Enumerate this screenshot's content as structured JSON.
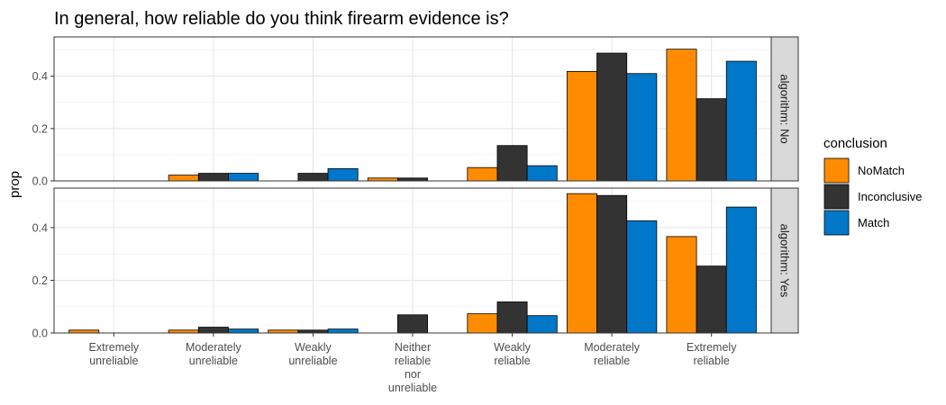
{
  "chart_data": {
    "type": "bar",
    "title": "In general, how reliable do you think firearm evidence is?",
    "ylabel": "prop",
    "xlabel": "",
    "ylim": [
      0,
      0.55
    ],
    "y_ticks": [
      "0.0",
      "0.2",
      "0.4"
    ],
    "grid": true,
    "legend_position": "right",
    "legend_title": "conclusion",
    "categories": [
      "Extremely unreliable",
      "Moderately unreliable",
      "Weakly unreliable",
      "Neither reliable nor unreliable",
      "Weakly reliable",
      "Moderately reliable",
      "Extremely reliable"
    ],
    "category_lines": [
      [
        "Extremely",
        "unreliable"
      ],
      [
        "Moderately",
        "unreliable"
      ],
      [
        "Weakly",
        "unreliable"
      ],
      [
        "Neither",
        "reliable",
        "nor",
        "unreliable"
      ],
      [
        "Weakly",
        "reliable"
      ],
      [
        "Moderately",
        "reliable"
      ],
      [
        "Extremely",
        "reliable"
      ]
    ],
    "series_meta": [
      {
        "name": "NoMatch",
        "color": "#FF8C00"
      },
      {
        "name": "Inconclusive",
        "color": "#333333"
      },
      {
        "name": "Match",
        "color": "#0077C8"
      }
    ],
    "panels": [
      {
        "strip": "algorithm: No",
        "series": [
          {
            "name": "NoMatch",
            "values": [
              null,
              0.022,
              null,
              0.011,
              0.051,
              0.418,
              0.503
            ]
          },
          {
            "name": "Inconclusive",
            "values": [
              null,
              0.029,
              0.029,
              0.011,
              0.135,
              0.488,
              0.314
            ]
          },
          {
            "name": "Match",
            "values": [
              null,
              0.029,
              0.047,
              null,
              0.058,
              0.41,
              0.457
            ]
          }
        ]
      },
      {
        "strip": "algorithm: Yes",
        "series": [
          {
            "name": "NoMatch",
            "values": [
              0.011,
              0.011,
              0.011,
              null,
              0.073,
              0.529,
              0.366
            ]
          },
          {
            "name": "Inconclusive",
            "values": [
              null,
              0.022,
              0.011,
              0.069,
              0.118,
              0.522,
              0.254
            ]
          },
          {
            "name": "Match",
            "values": [
              null,
              0.015,
              0.015,
              null,
              0.066,
              0.426,
              0.478
            ]
          }
        ]
      }
    ]
  }
}
